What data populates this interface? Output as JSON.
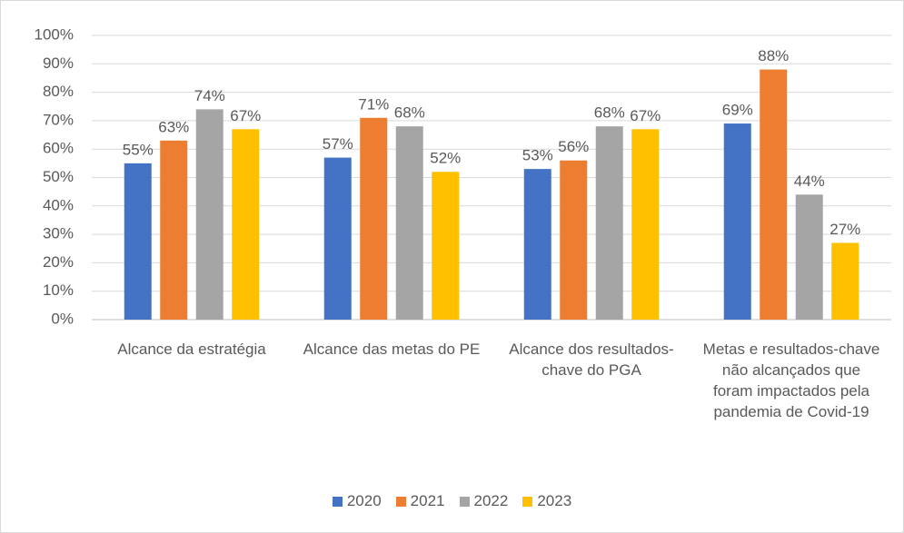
{
  "chart_data": {
    "type": "bar",
    "categories": [
      "Alcance da estratégia",
      "Alcance das metas do PE",
      "Alcance dos resultados-chave do PGA",
      "Metas e resultados-chave não alcançados que foram impactados pela pandemia de Covid-19"
    ],
    "series": [
      {
        "name": "2020",
        "color": "#4472c4",
        "values": [
          55,
          57,
          53,
          69
        ],
        "value_labels": [
          "55%",
          "57%",
          "53%",
          "69%"
        ]
      },
      {
        "name": "2021",
        "color": "#ed7d31",
        "values": [
          63,
          71,
          56,
          88
        ],
        "value_labels": [
          "63%",
          "71%",
          "56%",
          "88%"
        ]
      },
      {
        "name": "2022",
        "color": "#a5a5a5",
        "values": [
          74,
          68,
          68,
          44
        ],
        "value_labels": [
          "74%",
          "68%",
          "68%",
          "44%"
        ]
      },
      {
        "name": "2023",
        "color": "#ffc000",
        "values": [
          67,
          52,
          67,
          27
        ],
        "value_labels": [
          "67%",
          "52%",
          "67%",
          "27%"
        ]
      }
    ],
    "ylim": [
      0,
      100
    ],
    "yticks": [
      {
        "value": 0,
        "label": "0%"
      },
      {
        "value": 10,
        "label": "10%"
      },
      {
        "value": 20,
        "label": "20%"
      },
      {
        "value": 30,
        "label": "30%"
      },
      {
        "value": 40,
        "label": "40%"
      },
      {
        "value": 50,
        "label": "50%"
      },
      {
        "value": 60,
        "label": "60%"
      },
      {
        "value": 70,
        "label": "70%"
      },
      {
        "value": 80,
        "label": "80%"
      },
      {
        "value": 90,
        "label": "90%"
      },
      {
        "value": 100,
        "label": "100%"
      }
    ],
    "grid": true,
    "legend": "bottom"
  }
}
